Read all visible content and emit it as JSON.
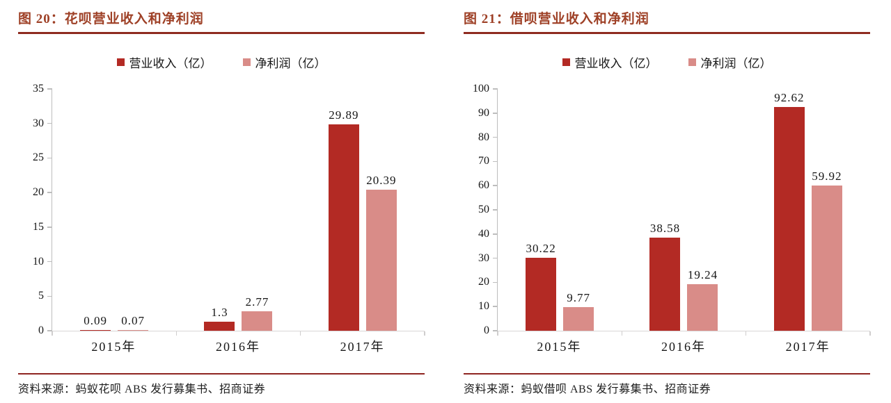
{
  "colors": {
    "title_text": "#9E4026",
    "title_rule": "#8F2B20",
    "footer_rule": "#8E2420",
    "series_revenue": "#B32A24",
    "series_net_profit": "#D98C88",
    "axis_line": "#BDBDBD",
    "baseline": "#D8D6D6"
  },
  "figures": [
    {
      "source": "资料来源：蚂蚁花呗 ABS 发行募集书、招商证券"
    },
    {
      "source": "资料来源：蚂蚁借呗 ABS 发行募集书、招商证券"
    }
  ],
  "chart_data": [
    {
      "type": "bar",
      "title": "图 20：花呗营业收入和净利润",
      "categories": [
        "2015年",
        "2016年",
        "2017年"
      ],
      "series": [
        {
          "name": "营业收入（亿）",
          "values": [
            0.09,
            1.3,
            29.89
          ],
          "labels": [
            "0.09",
            "1.3",
            "29.89"
          ],
          "color": "#B32A24"
        },
        {
          "name": "净利润（亿）",
          "values": [
            0.07,
            2.77,
            20.39
          ],
          "labels": [
            "0.07",
            "2.77",
            "20.39"
          ],
          "color": "#D98C88"
        }
      ],
      "ylim": [
        0,
        35
      ],
      "yticks": [
        0,
        5,
        10,
        15,
        20,
        25,
        30,
        35
      ],
      "legend_position": "top",
      "grid": false,
      "xlabel": "",
      "ylabel": ""
    },
    {
      "type": "bar",
      "title": "图 21：借呗营业收入和净利润",
      "categories": [
        "2015年",
        "2016年",
        "2017年"
      ],
      "series": [
        {
          "name": "营业收入（亿）",
          "values": [
            30.22,
            38.58,
            92.62
          ],
          "labels": [
            "30.22",
            "38.58",
            "92.62"
          ],
          "color": "#B32A24"
        },
        {
          "name": "净利润（亿）",
          "values": [
            9.77,
            19.24,
            59.92
          ],
          "labels": [
            "9.77",
            "19.24",
            "59.92"
          ],
          "color": "#D98C88"
        }
      ],
      "ylim": [
        0,
        100
      ],
      "yticks": [
        0,
        10,
        20,
        30,
        40,
        50,
        60,
        70,
        80,
        90,
        100
      ],
      "legend_position": "top",
      "grid": false,
      "xlabel": "",
      "ylabel": ""
    }
  ]
}
